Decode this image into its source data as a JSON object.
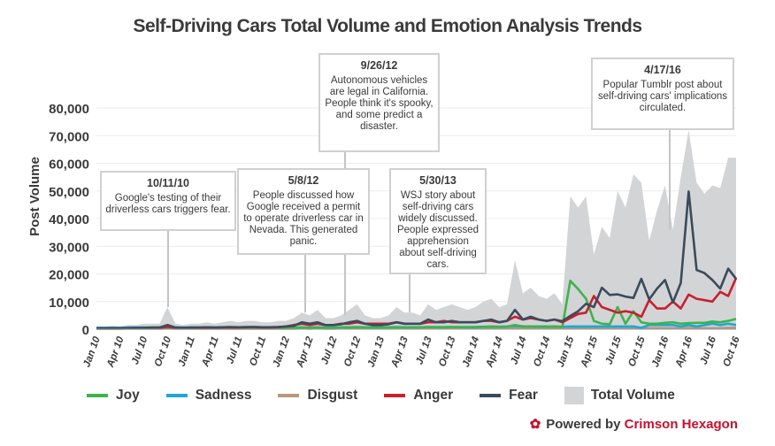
{
  "chart_data": {
    "type": "area+line",
    "title": "Self-Driving Cars Total Volume and Emotion Analysis Trends",
    "ylabel": "Post Volume",
    "xlabel": "",
    "ylim": [
      0,
      80000
    ],
    "yticks": [
      "0",
      "10,000",
      "20,000",
      "30,000",
      "40,000",
      "50,000",
      "60,000",
      "70,000",
      "80,000"
    ],
    "ytick_values": [
      0,
      10000,
      20000,
      30000,
      40000,
      50000,
      60000,
      70000,
      80000
    ],
    "grid": true,
    "legend_placement": "bottom",
    "xtick_labels": [
      "Jan 10",
      "Apr 10",
      "Jul 10",
      "Oct 10",
      "Jan 11",
      "Apr 11",
      "Jul 11",
      "Oct 11",
      "Jan 12",
      "Apr 12",
      "Jul 12",
      "Oct 12",
      "Jan 13",
      "Apr 13",
      "Jul 13",
      "Oct 13",
      "Jan 14",
      "Apr 14",
      "Jul 14",
      "Oct 14",
      "Jan 15",
      "Apr 15",
      "Jul 15",
      "Oct 15",
      "Jan 16",
      "Apr 16",
      "Jul 16",
      "Oct 16"
    ],
    "x_start": "Jan 10",
    "x_interval": "month",
    "series": [
      {
        "name": "Total Volume",
        "kind": "area",
        "color": "#d3d4d6",
        "values": [
          1000,
          1000,
          1200,
          1000,
          1500,
          1500,
          2000,
          2000,
          2000,
          8000,
          2000,
          1500,
          2000,
          2000,
          2500,
          2000,
          2500,
          3000,
          2500,
          3000,
          3000,
          2500,
          2500,
          3000,
          3000,
          4000,
          6000,
          5000,
          7000,
          4000,
          4000,
          5000,
          7000,
          9000,
          5000,
          4000,
          4000,
          5000,
          8000,
          6000,
          6000,
          5000,
          9000,
          7000,
          8000,
          9000,
          8000,
          7000,
          8000,
          10000,
          11000,
          8000,
          9000,
          25000,
          13000,
          15000,
          12000,
          11000,
          13000,
          9000,
          48000,
          44000,
          48000,
          27000,
          37000,
          33000,
          50000,
          44000,
          56000,
          53000,
          32000,
          43000,
          52000,
          36000,
          55000,
          72000,
          53000,
          49000,
          52000,
          51000,
          62000,
          62000
        ]
      },
      {
        "name": "Fear",
        "kind": "line",
        "color": "#3a4b5c",
        "values": [
          300,
          300,
          400,
          300,
          400,
          500,
          500,
          600,
          600,
          1500,
          600,
          500,
          600,
          600,
          700,
          600,
          700,
          800,
          700,
          800,
          800,
          700,
          700,
          800,
          1000,
          1200,
          2500,
          2000,
          2500,
          1500,
          1500,
          1800,
          2500,
          3000,
          2000,
          1500,
          1500,
          1800,
          2500,
          2000,
          2000,
          2000,
          3500,
          2500,
          2500,
          3000,
          2500,
          2500,
          2500,
          3000,
          3500,
          2500,
          3000,
          7000,
          3500,
          4500,
          3500,
          3000,
          3500,
          2900,
          4800,
          6500,
          9200,
          8000,
          15000,
          12400,
          12600,
          11800,
          11300,
          18200,
          10800,
          14700,
          17800,
          9700,
          16700,
          49800,
          21400,
          20300,
          17800,
          14700,
          21900,
          18200
        ]
      },
      {
        "name": "Anger",
        "kind": "line",
        "color": "#c8202f",
        "values": [
          300,
          300,
          300,
          300,
          400,
          400,
          400,
          500,
          500,
          800,
          500,
          400,
          500,
          500,
          600,
          500,
          600,
          600,
          600,
          700,
          700,
          600,
          600,
          700,
          1000,
          1500,
          2000,
          1500,
          2000,
          1500,
          1500,
          2000,
          2000,
          2500,
          2000,
          2000,
          2000,
          2000,
          2500,
          2000,
          2000,
          2000,
          2500,
          2500,
          3000,
          2500,
          2500,
          2500,
          2500,
          3000,
          3000,
          2500,
          3000,
          4500,
          3500,
          4000,
          3500,
          3000,
          3500,
          2500,
          4000,
          5500,
          6000,
          12000,
          8000,
          7000,
          6000,
          6500,
          6000,
          4500,
          10500,
          7500,
          7500,
          10000,
          7500,
          12500,
          11000,
          10500,
          10000,
          13500,
          12000,
          18500
        ]
      },
      {
        "name": "Joy",
        "kind": "line",
        "color": "#3cb44a",
        "values": [
          200,
          200,
          200,
          200,
          300,
          300,
          300,
          300,
          300,
          500,
          300,
          300,
          300,
          300,
          400,
          300,
          400,
          400,
          400,
          400,
          400,
          400,
          400,
          400,
          500,
          500,
          600,
          500,
          600,
          500,
          500,
          600,
          600,
          700,
          600,
          600,
          600,
          600,
          700,
          600,
          600,
          600,
          800,
          700,
          700,
          800,
          700,
          700,
          700,
          800,
          900,
          800,
          900,
          1500,
          1000,
          1000,
          900,
          900,
          1000,
          800,
          17500,
          14500,
          11000,
          3000,
          2000,
          1800,
          8000,
          2000,
          6500,
          2500,
          2000,
          2000,
          2300,
          2500,
          2000,
          2200,
          2300,
          2300,
          2800,
          2500,
          3000,
          3700
        ]
      },
      {
        "name": "Sadness",
        "kind": "line",
        "color": "#1ba8d8",
        "values": [
          500,
          500,
          500,
          500,
          600,
          600,
          600,
          600,
          600,
          800,
          600,
          600,
          600,
          600,
          700,
          600,
          700,
          700,
          700,
          700,
          800,
          700,
          700,
          800,
          600,
          600,
          600,
          600,
          700,
          600,
          600,
          700,
          700,
          800,
          700,
          700,
          700,
          700,
          800,
          700,
          700,
          700,
          800,
          800,
          800,
          800,
          800,
          800,
          800,
          900,
          1000,
          900,
          1000,
          1200,
          1000,
          1000,
          1000,
          1000,
          1000,
          900,
          1000,
          1000,
          1000,
          1000,
          1000,
          1000,
          1000,
          1000,
          1000,
          500,
          1500,
          1500,
          1500,
          1500,
          1000,
          1500,
          1000,
          1500,
          2000,
          1500,
          2000,
          1500
        ]
      },
      {
        "name": "Disgust",
        "kind": "line",
        "color": "#b8987a",
        "values": [
          200,
          200,
          200,
          200,
          200,
          200,
          200,
          200,
          200,
          300,
          200,
          200,
          200,
          200,
          200,
          200,
          200,
          200,
          200,
          200,
          200,
          200,
          200,
          200,
          200,
          200,
          300,
          200,
          300,
          200,
          200,
          300,
          300,
          300,
          300,
          300,
          300,
          300,
          300,
          300,
          300,
          300,
          300,
          300,
          300,
          300,
          300,
          300,
          300,
          300,
          300,
          300,
          300,
          400,
          300,
          300,
          300,
          300,
          300,
          300,
          400,
          400,
          400,
          400,
          400,
          400,
          400,
          400,
          400,
          400,
          400,
          400,
          400,
          400,
          400,
          500,
          400,
          400,
          400,
          400,
          500,
          500
        ]
      }
    ],
    "annotations": [
      {
        "date": "10/11/10",
        "text": "Google's testing of their driverless cars triggers fear.",
        "at": "Oct 10"
      },
      {
        "date": "5/8/12",
        "text": "People discussed how Google received a permit to operate driverless car in Nevada. This generated panic.",
        "at": "May 12"
      },
      {
        "date": "9/26/12",
        "text": "Autonomous vehicles are legal in California. People think it's spooky, and some predict a disaster.",
        "at": "Sep 12"
      },
      {
        "date": "5/30/13",
        "text": "WSJ story about self-driving cars widely discussed. People expressed apprehension about self-driving cars.",
        "at": "May 13"
      },
      {
        "date": "4/17/16",
        "text": "Popular Tumblr post about self-driving cars' implications circulated.",
        "at": "Apr 16"
      }
    ]
  },
  "legend": [
    {
      "label": "Joy",
      "color": "#3cb44a"
    },
    {
      "label": "Sadness",
      "color": "#1ba8d8"
    },
    {
      "label": "Disgust",
      "color": "#b8987a"
    },
    {
      "label": "Anger",
      "color": "#c8202f"
    },
    {
      "label": "Fear",
      "color": "#3a4b5c"
    },
    {
      "label": "Total Volume",
      "color": "#d3d4d6",
      "box": true
    }
  ],
  "footer": {
    "prefix": "Powered by",
    "brand": "Crimson Hexagon",
    "icon": "hexagon-flower-icon"
  }
}
